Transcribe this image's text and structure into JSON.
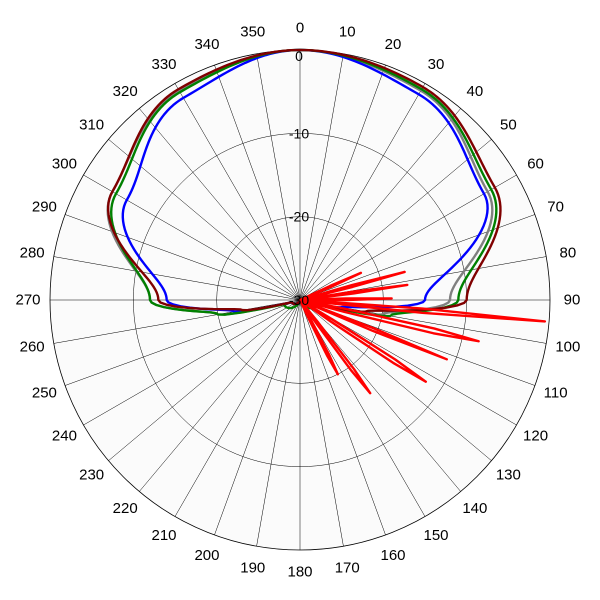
{
  "chart_data": {
    "type": "polar-line",
    "title": "",
    "angle_unit": "degrees",
    "angle_direction": "clockwise",
    "angle_zero": "top",
    "angle_ticks": [
      "0",
      "10",
      "20",
      "30",
      "40",
      "50",
      "60",
      "70",
      "80",
      "90",
      "100",
      "110",
      "120",
      "130",
      "140",
      "150",
      "160",
      "170",
      "180",
      "190",
      "200",
      "210",
      "220",
      "230",
      "240",
      "250",
      "260",
      "270",
      "280",
      "290",
      "300",
      "310",
      "320",
      "330",
      "340",
      "350"
    ],
    "radial_ticks": [
      "0",
      "-10",
      "-20",
      "-30"
    ],
    "radial_range_db": [
      -30,
      0
    ],
    "grid": true,
    "colors": {
      "background": "#ffffff",
      "plot_area": "#fbfbfb",
      "grid": "#000000",
      "series": [
        "#808080",
        "#0000ff",
        "#008000",
        "#800000",
        "#ff0000"
      ]
    },
    "series": [
      {
        "color": "#808080",
        "points": [
          [
            0,
            0
          ],
          [
            30,
            -1
          ],
          [
            60,
            -4
          ],
          [
            90,
            -12
          ],
          [
            100,
            -20
          ],
          [
            105,
            -29
          ],
          [
            180,
            -30
          ],
          [
            255,
            -29
          ],
          [
            260,
            -20
          ],
          [
            270,
            -12
          ],
          [
            300,
            -4
          ],
          [
            330,
            -1
          ]
        ]
      },
      {
        "color": "#0000ff",
        "points": [
          [
            0,
            0
          ],
          [
            30,
            -1.5
          ],
          [
            60,
            -4.5
          ],
          [
            90,
            -15
          ],
          [
            100,
            -25
          ],
          [
            105,
            -29
          ],
          [
            180,
            -30
          ],
          [
            255,
            -29
          ],
          [
            260,
            -22
          ],
          [
            270,
            -14
          ],
          [
            300,
            -6
          ],
          [
            330,
            -2
          ]
        ]
      },
      {
        "color": "#008000",
        "points": [
          [
            0,
            0
          ],
          [
            30,
            -0.8
          ],
          [
            60,
            -3.5
          ],
          [
            90,
            -11
          ],
          [
            100,
            -19
          ],
          [
            105,
            -28
          ],
          [
            180,
            -30
          ],
          [
            255,
            -28
          ],
          [
            260,
            -20
          ],
          [
            270,
            -12
          ],
          [
            300,
            -4.5
          ],
          [
            330,
            -1.2
          ]
        ]
      },
      {
        "color": "#800000",
        "points": [
          [
            0,
            0
          ],
          [
            30,
            -0.5
          ],
          [
            60,
            -3
          ],
          [
            90,
            -10
          ],
          [
            100,
            -22
          ],
          [
            105,
            -29
          ],
          [
            180,
            -30
          ],
          [
            255,
            -29
          ],
          [
            260,
            -23
          ],
          [
            270,
            -13
          ],
          [
            300,
            -4
          ],
          [
            330,
            -0.8
          ]
        ]
      },
      {
        "color": "#ff0000",
        "points": [
          [
            0,
            -30
          ],
          [
            64,
            -30
          ],
          [
            66,
            -22
          ],
          [
            68,
            -30
          ],
          [
            73,
            -30
          ],
          [
            75,
            -17
          ],
          [
            77,
            -30
          ],
          [
            80,
            -30
          ],
          [
            82,
            -17
          ],
          [
            84,
            -30
          ],
          [
            87,
            -30
          ],
          [
            89,
            -19
          ],
          [
            91,
            -30
          ],
          [
            93,
            -30
          ],
          [
            95,
            -0.5
          ],
          [
            97,
            -30
          ],
          [
            100,
            -30
          ],
          [
            103,
            -8
          ],
          [
            106,
            -30
          ],
          [
            110,
            -30
          ],
          [
            112,
            -11
          ],
          [
            114,
            -30
          ],
          [
            120,
            -30
          ],
          [
            123,
            -12
          ],
          [
            126,
            -30
          ],
          [
            140,
            -30
          ],
          [
            143,
            -16
          ],
          [
            146,
            -30
          ],
          [
            150,
            -30
          ],
          [
            153,
            -20
          ],
          [
            156,
            -30
          ],
          [
            360,
            -30
          ]
        ]
      }
    ]
  }
}
